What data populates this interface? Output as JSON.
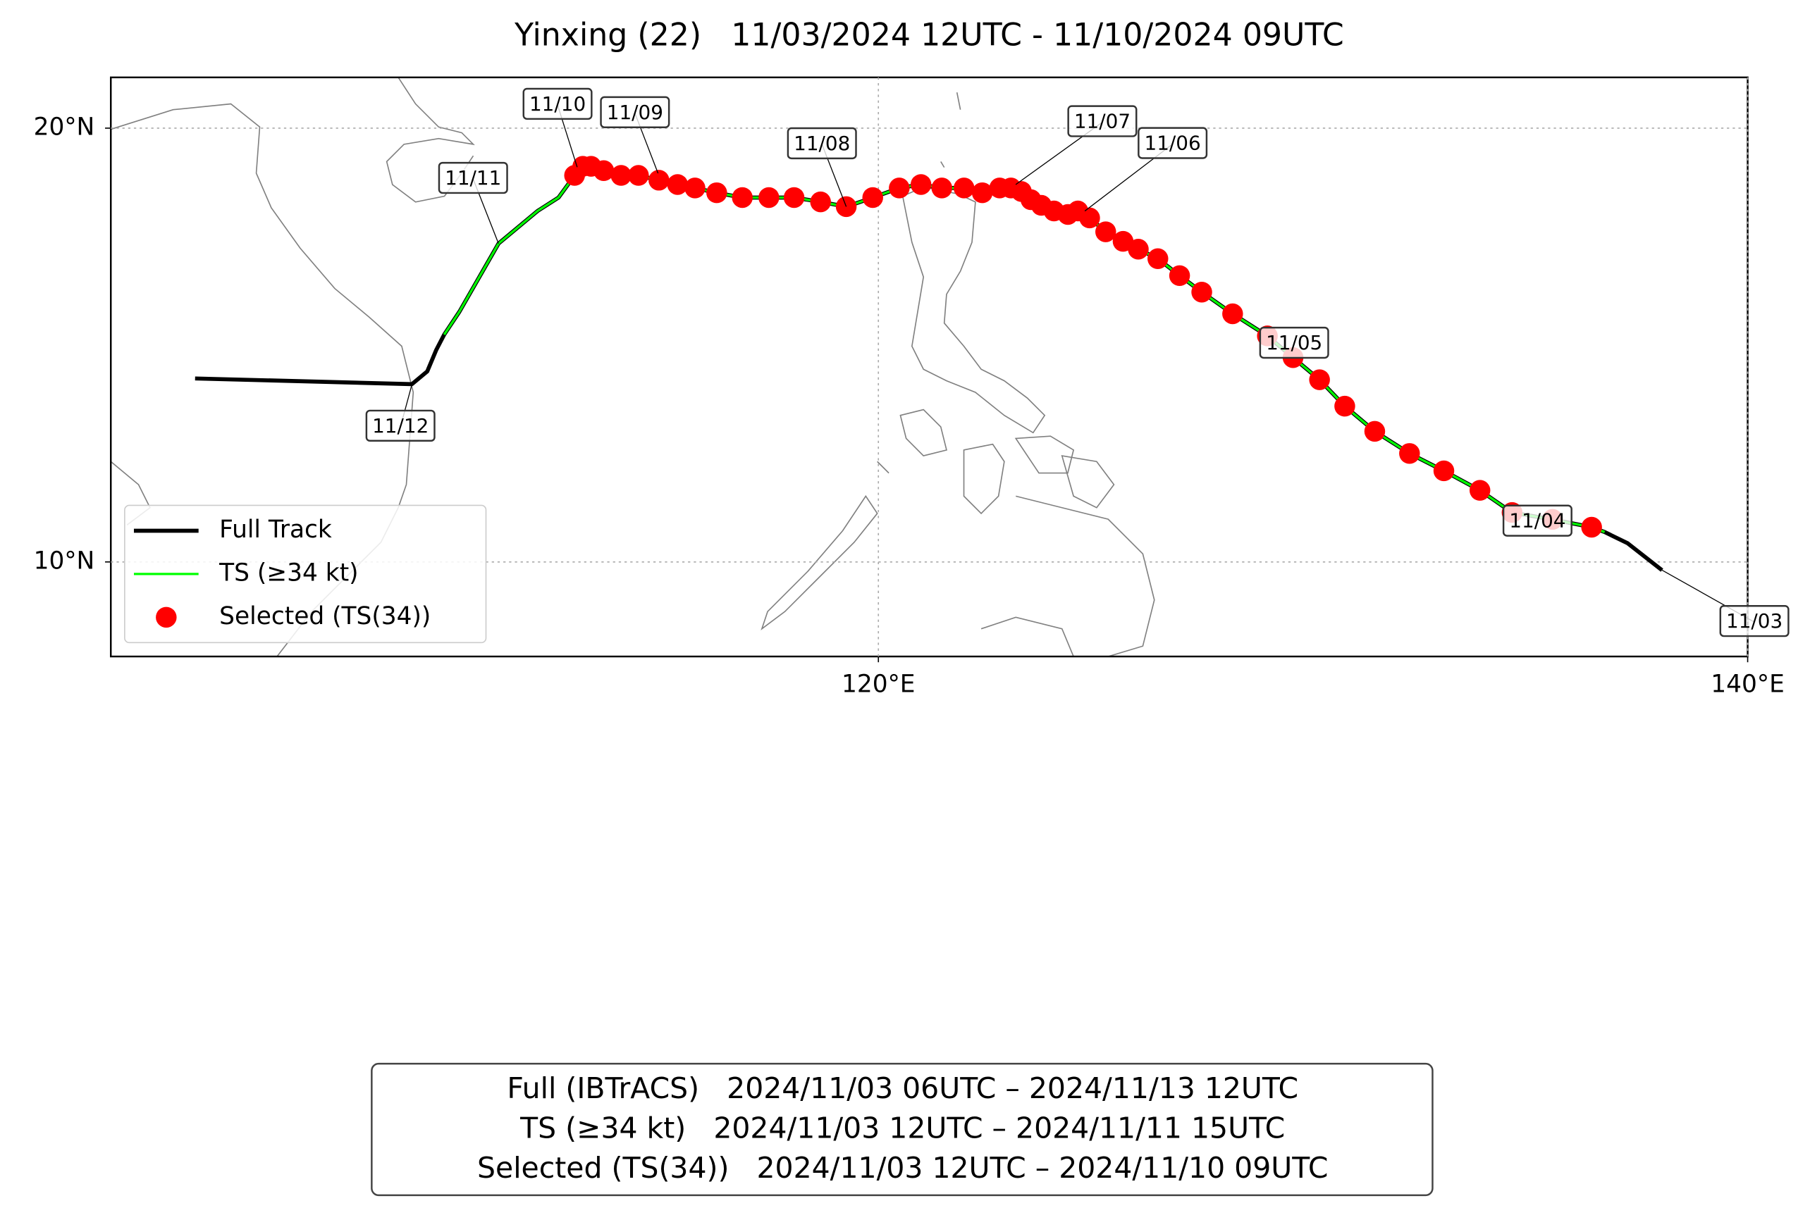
{
  "chart_data": {
    "type": "line",
    "title": "Yinxing (22)   11/03/2024 12UTC - 11/10/2024 09UTC",
    "xlim": [
      102.34,
      140
    ],
    "ylim": [
      7.82,
      21.17
    ],
    "xticks": [
      {
        "value": 120,
        "label": "120°E"
      },
      {
        "value": 140,
        "label": "140°E"
      }
    ],
    "yticks": [
      {
        "value": 10,
        "label": "10°N"
      },
      {
        "value": 20,
        "label": "20°N"
      }
    ],
    "grid": true,
    "legend": "lower left",
    "series": [
      {
        "name": "Full Track",
        "color": "#000000",
        "style": "line",
        "x": [
          138.03,
          137.24,
          136.71,
          136.41,
          135.51,
          134.58,
          133.84,
          133.01,
          132.22,
          131.42,
          130.73,
          130.15,
          129.54,
          128.95,
          128.15,
          127.44,
          126.93,
          126.43,
          125.98,
          125.63,
          125.23,
          124.86,
          124.59,
          124.36,
          124.04,
          123.75,
          123.51,
          123.29,
          123.05,
          122.79,
          122.39,
          121.97,
          121.46,
          120.98,
          120.48,
          119.87,
          119.26,
          118.67,
          118.06,
          117.48,
          116.87,
          116.28,
          115.78,
          115.38,
          114.95,
          114.48,
          114.08,
          113.68,
          113.39,
          113.2,
          113.01,
          112.64,
          112.16,
          111.26,
          110.36,
          110.01,
          109.83,
          109.62,
          109.27,
          104.28
        ],
        "y": [
          9.81,
          10.43,
          10.69,
          10.8,
          10.98,
          11.14,
          11.65,
          12.1,
          12.5,
          13.01,
          13.59,
          14.2,
          14.71,
          15.21,
          15.72,
          16.22,
          16.6,
          16.99,
          17.21,
          17.39,
          17.61,
          17.93,
          18.09,
          18.01,
          18.09,
          18.22,
          18.35,
          18.54,
          18.62,
          18.62,
          18.51,
          18.62,
          18.62,
          18.7,
          18.62,
          18.4,
          18.19,
          18.3,
          18.4,
          18.4,
          18.4,
          18.51,
          18.62,
          18.7,
          18.8,
          18.91,
          18.91,
          19.02,
          19.12,
          19.12,
          18.91,
          18.4,
          18.09,
          17.34,
          15.77,
          15.24,
          14.89,
          14.39,
          14.1,
          14.23
        ]
      },
      {
        "name": "TS (≥34 kt)",
        "color": "#00ff00",
        "style": "line",
        "x": [
          136.71,
          136.41,
          135.51,
          134.58,
          133.84,
          133.01,
          132.22,
          131.42,
          130.73,
          130.15,
          129.54,
          128.95,
          128.15,
          127.44,
          126.93,
          126.43,
          125.98,
          125.63,
          125.23,
          124.86,
          124.59,
          124.36,
          124.04,
          123.75,
          123.51,
          123.29,
          123.05,
          122.79,
          122.39,
          121.97,
          121.46,
          120.98,
          120.48,
          119.87,
          119.26,
          118.67,
          118.06,
          117.48,
          116.87,
          116.28,
          115.78,
          115.38,
          114.95,
          114.48,
          114.08,
          113.68,
          113.39,
          113.2,
          113.01,
          112.64,
          112.16,
          111.26,
          110.36,
          110.01
        ],
        "y": [
          10.69,
          10.8,
          10.98,
          11.14,
          11.65,
          12.1,
          12.5,
          13.01,
          13.59,
          14.2,
          14.71,
          15.21,
          15.72,
          16.22,
          16.6,
          16.99,
          17.21,
          17.39,
          17.61,
          17.93,
          18.09,
          18.01,
          18.09,
          18.22,
          18.35,
          18.54,
          18.62,
          18.62,
          18.51,
          18.62,
          18.62,
          18.7,
          18.62,
          18.4,
          18.19,
          18.3,
          18.4,
          18.4,
          18.4,
          18.51,
          18.62,
          18.7,
          18.8,
          18.91,
          18.91,
          19.02,
          19.12,
          19.12,
          18.91,
          18.4,
          18.09,
          17.34,
          15.77,
          15.24
        ]
      },
      {
        "name": "Selected (TS(34))",
        "color": "#ff0000",
        "style": "markers",
        "x": [
          136.41,
          135.51,
          134.58,
          133.84,
          133.01,
          132.22,
          131.42,
          130.73,
          130.15,
          129.54,
          128.95,
          128.15,
          127.44,
          126.93,
          126.43,
          125.98,
          125.63,
          125.23,
          124.86,
          124.59,
          124.36,
          124.04,
          123.75,
          123.51,
          123.29,
          123.05,
          122.79,
          122.39,
          121.97,
          121.46,
          120.98,
          120.48,
          119.87,
          119.26,
          118.67,
          118.06,
          117.48,
          116.87,
          116.28,
          115.78,
          115.38,
          114.95,
          114.48,
          114.08,
          113.68,
          113.39,
          113.2,
          113.01
        ],
        "y": [
          10.8,
          10.98,
          11.14,
          11.65,
          12.1,
          12.5,
          13.01,
          13.59,
          14.2,
          14.71,
          15.21,
          15.72,
          16.22,
          16.6,
          16.99,
          17.21,
          17.39,
          17.61,
          17.93,
          18.09,
          18.01,
          18.09,
          18.22,
          18.35,
          18.54,
          18.62,
          18.62,
          18.51,
          18.62,
          18.62,
          18.7,
          18.62,
          18.4,
          18.19,
          18.3,
          18.4,
          18.4,
          18.4,
          18.51,
          18.62,
          18.7,
          18.8,
          18.91,
          18.91,
          19.02,
          19.12,
          19.12,
          18.91
        ]
      }
    ],
    "annotations": [
      {
        "text": "11/03",
        "x": 138.03,
        "y": 9.81
      },
      {
        "text": "11/04",
        "x": 135.51,
        "y": 10.98
      },
      {
        "text": "11/05",
        "x": 129.54,
        "y": 14.71
      },
      {
        "text": "11/06",
        "x": 124.75,
        "y": 18.09
      },
      {
        "text": "11/07",
        "x": 123.16,
        "y": 18.7
      },
      {
        "text": "11/08",
        "x": 119.26,
        "y": 18.19
      },
      {
        "text": "11/09",
        "x": 114.93,
        "y": 18.96
      },
      {
        "text": "11/10",
        "x": 113.07,
        "y": 19.1
      },
      {
        "text": "11/11",
        "x": 111.26,
        "y": 17.34
      },
      {
        "text": "11/12",
        "x": 109.27,
        "y": 14.1
      }
    ],
    "info_lines": [
      "Full (IBTrACS)   2024/11/03 06UTC – 2024/11/13 12UTC",
      "TS (≥34 kt)   2024/11/03 12UTC – 2024/11/11 15UTC",
      "Selected (TS(34))   2024/11/03 12UTC – 2024/11/10 09UTC"
    ]
  }
}
